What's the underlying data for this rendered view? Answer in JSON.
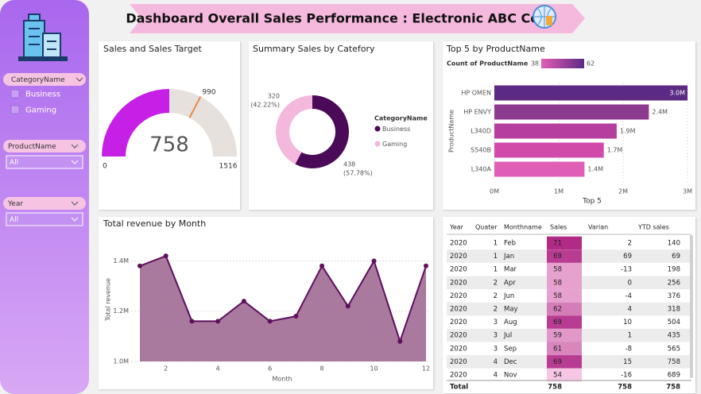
{
  "header": {
    "title": "Dashboard Overall Sales  Performance  :  Electronic  ABC Corp"
  },
  "slicers": [
    {
      "title": "CategoryName",
      "items": [
        "Business",
        "Gaming"
      ]
    },
    {
      "title": "ProductName",
      "selected": "All"
    },
    {
      "title": "Year",
      "selected": "All"
    }
  ],
  "chart_data": [
    {
      "type": "gauge",
      "title": "Sales and Sales Target",
      "value": 758,
      "target": 990,
      "min": 0,
      "max": 1516,
      "color": "#c61fe6",
      "track_color": "#e6e1dc",
      "target_color": "#e8874a"
    },
    {
      "type": "donut",
      "title": "Summary Sales by Catefory",
      "legend_title": "CategoryName",
      "categories": [
        "Business",
        "Gaming"
      ],
      "values": [
        438,
        320
      ],
      "percent_labels": [
        "(57.78%)",
        "(42.22%)"
      ],
      "colors": [
        "#4b0a57",
        "#f3b8dc"
      ]
    },
    {
      "type": "bar",
      "orientation": "horizontal",
      "title": "Top 5 by ProductName",
      "x_label": "Top 5",
      "y_label": "ProductName",
      "legend_title": "Count of ProductName",
      "legend_range": [
        38,
        62
      ],
      "legend_colors": [
        "#e45cb8",
        "#5b2a84"
      ],
      "categories": [
        "HP OMEN",
        "HP ENVY",
        "L340D",
        "S540B",
        "L340A"
      ],
      "values": [
        3.0,
        2.4,
        1.9,
        1.7,
        1.4
      ],
      "value_labels": [
        "3.0M",
        "2.4M",
        "1.9M",
        "1.7M",
        "1.4M"
      ],
      "colors": [
        "#5b2a84",
        "#8f3a91",
        "#b63e9f",
        "#d24aa9",
        "#e05fb6"
      ],
      "xlim": [
        0,
        3
      ],
      "xticks": [
        {
          "value": 0,
          "label": "0M"
        },
        {
          "value": 1,
          "label": "1M"
        },
        {
          "value": 2,
          "label": "2M"
        },
        {
          "value": 3,
          "label": "3M"
        }
      ],
      "grid": true
    },
    {
      "type": "area",
      "title": "Total revenue by Month",
      "x_label": "Month",
      "y_label": "Total revenue",
      "x": [
        1,
        2,
        3,
        4,
        5,
        6,
        7,
        8,
        9,
        10,
        11,
        12
      ],
      "values": [
        1.38,
        1.42,
        1.16,
        1.16,
        1.24,
        1.16,
        1.18,
        1.38,
        1.22,
        1.4,
        1.08,
        1.38
      ],
      "xlim": [
        1,
        12
      ],
      "xticks": [
        2,
        4,
        6,
        8,
        10,
        12
      ],
      "ylim": [
        1.0,
        1.49
      ],
      "yticks": [
        {
          "value": 1.0,
          "label": "1.0M"
        },
        {
          "value": 1.2,
          "label": "1.2M"
        },
        {
          "value": 1.4,
          "label": "1.4M"
        }
      ],
      "color": "#5e0f5e",
      "fill_color": "#a97a9e",
      "grid": true
    }
  ],
  "table": {
    "columns": [
      "Year",
      "Quater",
      "Monthname",
      "Sales",
      "Varian",
      "YTD sales"
    ],
    "rows": [
      [
        2020,
        1,
        "Feb",
        71,
        2,
        140
      ],
      [
        2020,
        1,
        "Jan",
        69,
        69,
        69
      ],
      [
        2020,
        1,
        "Mar",
        58,
        -13,
        198
      ],
      [
        2020,
        2,
        "Apr",
        58,
        0,
        256
      ],
      [
        2020,
        2,
        "Jun",
        58,
        -4,
        376
      ],
      [
        2020,
        2,
        "May",
        62,
        4,
        318
      ],
      [
        2020,
        3,
        "Aug",
        69,
        10,
        504
      ],
      [
        2020,
        3,
        "Jul",
        59,
        1,
        435
      ],
      [
        2020,
        3,
        "Sep",
        61,
        -8,
        565
      ],
      [
        2020,
        4,
        "Dec",
        69,
        15,
        758
      ],
      [
        2020,
        4,
        "Nov",
        54,
        -16,
        689
      ]
    ],
    "total": {
      "label": "Total",
      "values": [
        758,
        758,
        758
      ]
    }
  }
}
